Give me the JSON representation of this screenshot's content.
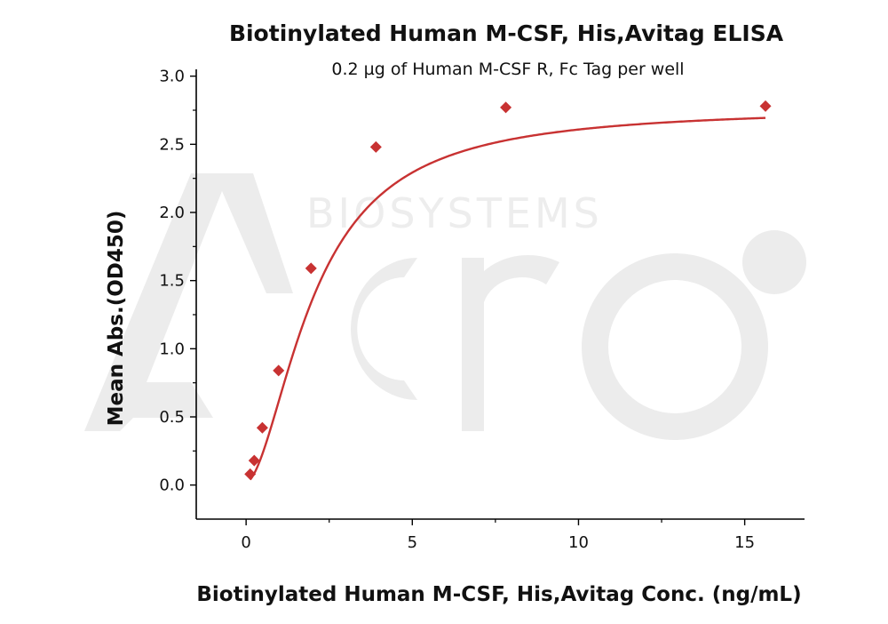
{
  "chart_data": {
    "type": "scatter",
    "title": "Biotinylated Human M-CSF, His,Avitag ELISA",
    "subtitle": "0.2 µg of Human M-CSF R, Fc Tag per well",
    "xlabel": "Biotinylated Human M-CSF, His,Avitag Conc. (ng/mL)",
    "ylabel": "Mean Abs.(OD450)",
    "xlim": [
      -1.5,
      16.8
    ],
    "ylim": [
      -0.25,
      3.05
    ],
    "xticks": [
      0,
      5,
      10,
      15
    ],
    "xtick_labels": [
      "0",
      "5",
      "10",
      "15"
    ],
    "yticks": [
      0.0,
      0.5,
      1.0,
      1.5,
      2.0,
      2.5,
      3.0
    ],
    "ytick_labels": [
      "0.0",
      "0.5",
      "1.0",
      "1.5",
      "2.0",
      "2.5",
      "3.0"
    ],
    "series": [
      {
        "name": "Mean Abs.",
        "marker": "diamond",
        "color": "#c83232",
        "x": [
          0.122,
          0.244,
          0.488,
          0.977,
          1.953,
          3.906,
          7.813,
          15.625
        ],
        "y": [
          0.08,
          0.18,
          0.42,
          0.84,
          1.59,
          2.48,
          2.77,
          2.78
        ]
      }
    ],
    "fit_curve": {
      "color": "#c83232",
      "model": "4PL",
      "bottom": 0.02,
      "top": 2.77,
      "ec50": 2.05,
      "hill": 1.75
    }
  },
  "watermark": {
    "brand_text": "BIOSYSTEMS"
  }
}
